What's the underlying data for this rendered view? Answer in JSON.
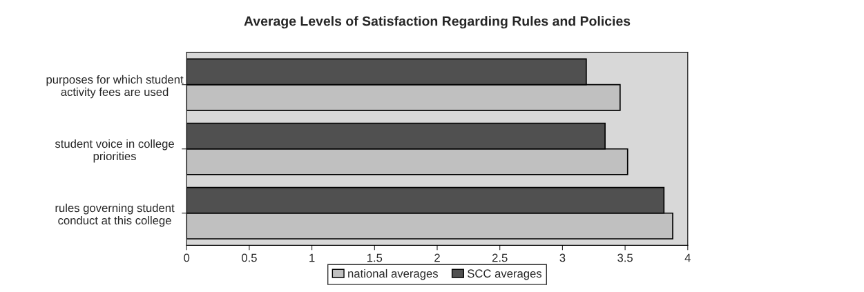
{
  "chart_data": {
    "type": "bar",
    "orientation": "horizontal",
    "title": "Average Levels of Satisfaction Regarding Rules and Policies",
    "categories": [
      "purposes for which student\nactivity fees are used",
      "student voice in college\npriorities",
      "rules governing student\nconduct at this college"
    ],
    "series": [
      {
        "name": "national averages",
        "color": "#c0c0c0",
        "values": [
          3.46,
          3.52,
          3.88
        ]
      },
      {
        "name": "SCC averages",
        "color": "#505050",
        "values": [
          3.19,
          3.34,
          3.81
        ]
      }
    ],
    "xlim": [
      0,
      4
    ],
    "xticks": [
      0,
      0.5,
      1,
      1.5,
      2,
      2.5,
      3,
      3.5,
      4
    ],
    "grid": false,
    "legend": "bottom"
  }
}
